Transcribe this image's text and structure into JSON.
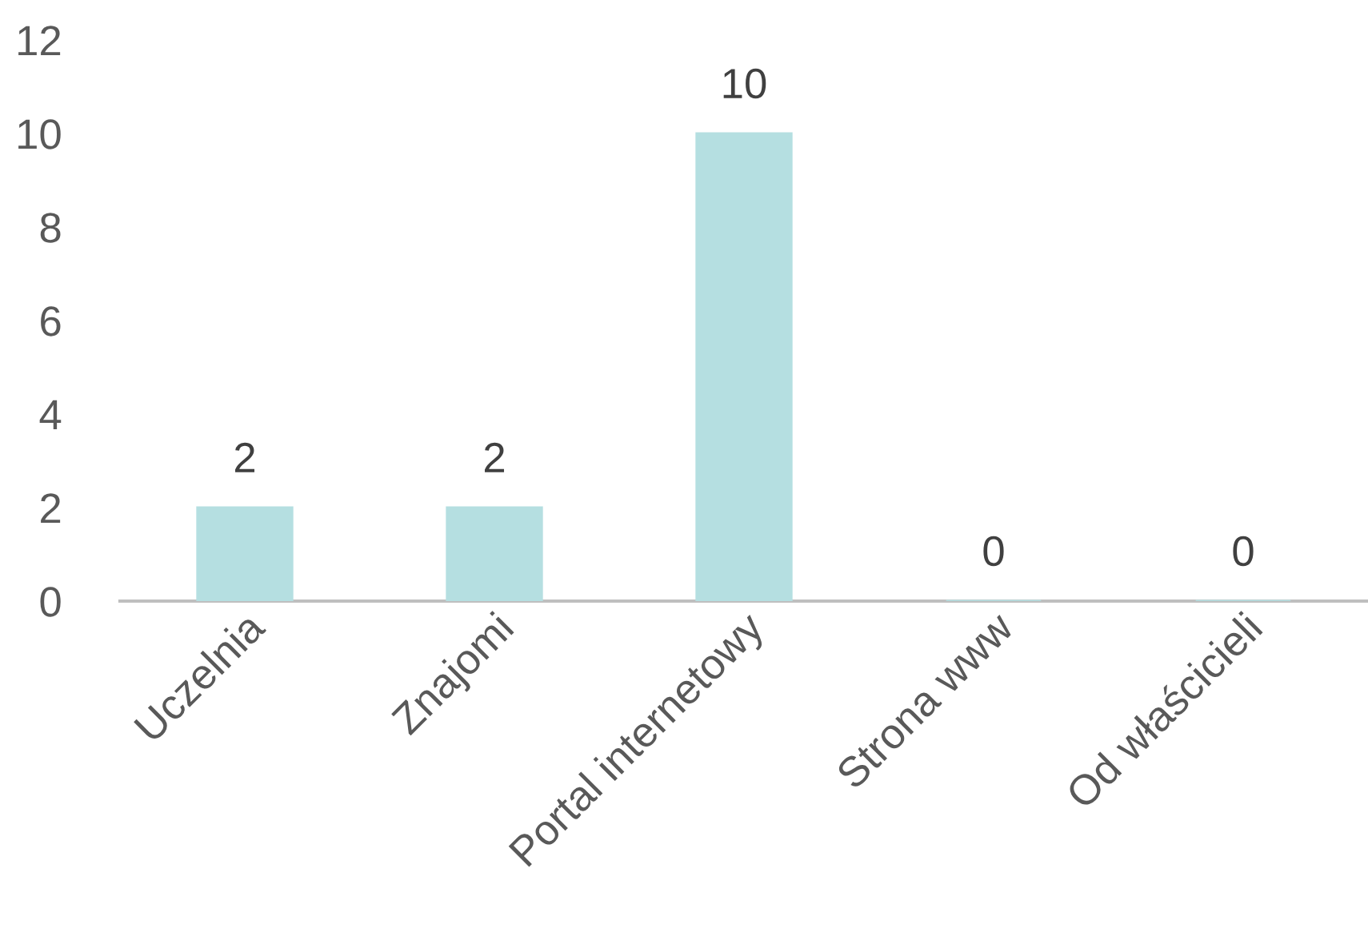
{
  "chart_data": {
    "type": "bar",
    "categories": [
      "Uczelnia",
      "Znajomi",
      "Portal internetowy",
      "Strona www",
      "Od właścicieli"
    ],
    "values": [
      2,
      2,
      10,
      0,
      0
    ],
    "color": "#b5dfe1",
    "data_labels": true,
    "ylim": [
      0,
      12
    ],
    "yticks": [
      0,
      2,
      4,
      6,
      8,
      10,
      12
    ],
    "grid": false
  }
}
